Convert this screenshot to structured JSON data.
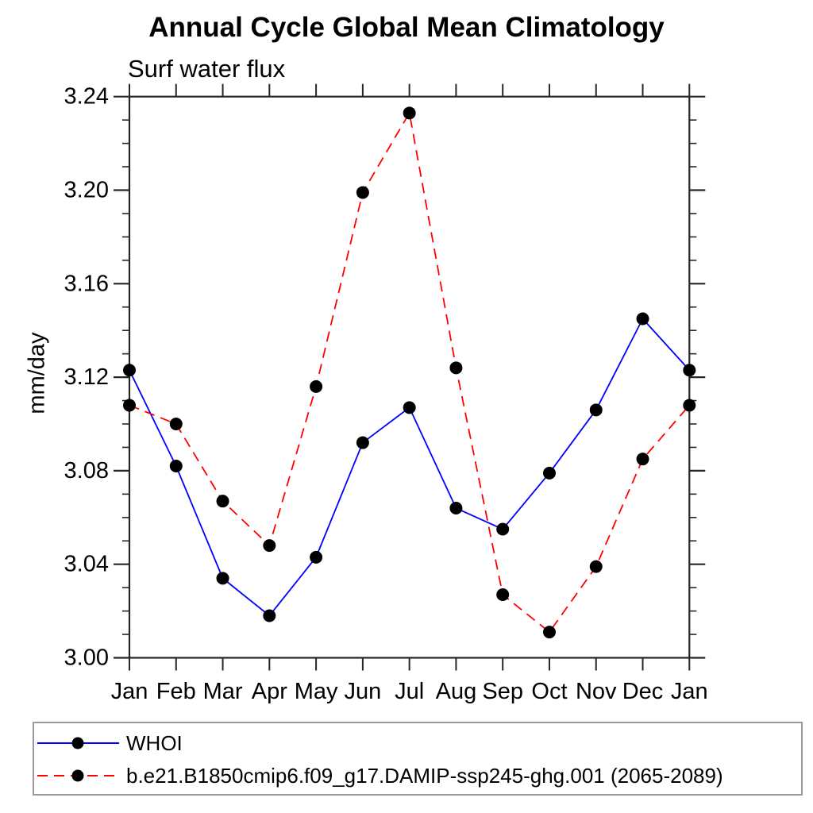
{
  "title": "Annual Cycle Global Mean Climatology",
  "subtitle": "Surf water flux",
  "ylabel": "mm/day",
  "chart_data": {
    "type": "line",
    "categories": [
      "Jan",
      "Feb",
      "Mar",
      "Apr",
      "May",
      "Jun",
      "Jul",
      "Aug",
      "Sep",
      "Oct",
      "Nov",
      "Dec",
      "Jan"
    ],
    "series": [
      {
        "name": "WHOI",
        "color": "#0000ff",
        "line_style": "solid",
        "marker": "filled-circle",
        "marker_color": "#000000",
        "values": [
          3.123,
          3.082,
          3.034,
          3.018,
          3.043,
          3.092,
          3.107,
          3.064,
          3.055,
          3.079,
          3.106,
          3.145,
          3.123
        ]
      },
      {
        "name": "b.e21.B1850cmip6.f09_g17.DAMIP-ssp245-ghg.001 (2065-2089)",
        "color": "#ff0000",
        "line_style": "dashed",
        "marker": "filled-circle",
        "marker_color": "#000000",
        "values": [
          3.108,
          3.1,
          3.067,
          3.048,
          3.116,
          3.199,
          3.233,
          3.124,
          3.027,
          3.011,
          3.039,
          3.085,
          3.108
        ]
      }
    ],
    "xlabel": "",
    "ylim": [
      3.0,
      3.24
    ],
    "y_major_step": 0.04,
    "y_minor_step": 0.01,
    "y_tick_labels": [
      "3.00",
      "3.04",
      "3.08",
      "3.12",
      "3.16",
      "3.20",
      "3.24"
    ],
    "grid": false,
    "legend_position": "bottom-left",
    "axis_color": "#262626"
  }
}
